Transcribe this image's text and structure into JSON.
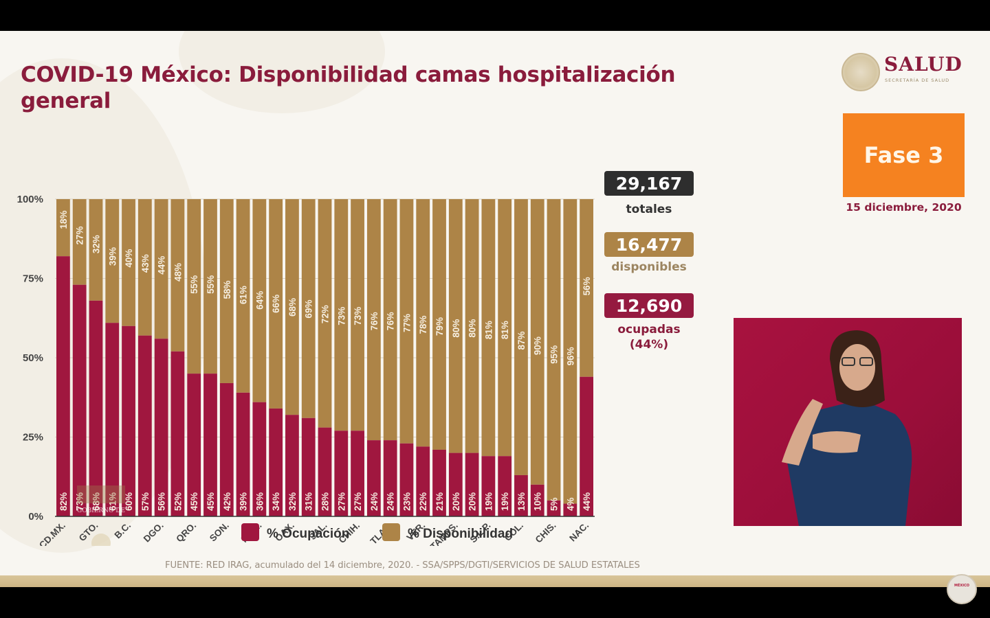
{
  "header": {
    "title": "COVID-19 México: Disponibilidad camas hospitalización general",
    "logo_text": "SALUD",
    "logo_subtext": "SECRETARÍA DE SALUD",
    "phase_label": "Fase 3",
    "date": "15 diciembre, 2020"
  },
  "stats": {
    "total_value": "29,167",
    "total_label": "totales",
    "available_value": "16,477",
    "available_label": "disponibles",
    "occupied_value": "12,690",
    "occupied_label": "ocupadas",
    "occupied_pct": "(44%)"
  },
  "colors": {
    "occupancy": "#a0173f",
    "availability": "#ad8447",
    "title": "#8a1c3c",
    "phase": "#f58220",
    "total_box": "#2e2e2e",
    "available_box": "#ad8447",
    "occupied_box": "#951a40"
  },
  "source": "FUENTE: RED IRAG, acumulado del 14 diciembre, 2020. -  SSA/SPPS/DGTI/SERVICIOS DE SALUD ESTATALES",
  "watermark": {
    "line1": "GOBIERNO DE",
    "line2": "MÉXICO"
  },
  "chart_data": {
    "type": "bar",
    "stacked": true,
    "title": "COVID-19 México: Disponibilidad camas hospitalización general",
    "xlabel": "",
    "ylabel": "",
    "ylim": [
      0,
      100
    ],
    "yticks": [
      "0%",
      "25%",
      "50%",
      "75%",
      "100%"
    ],
    "grid": true,
    "legend_position": "bottom",
    "bar_count": 33,
    "categories": [
      "CD.MX.",
      "",
      "GTO.",
      "",
      "B.C.",
      "",
      "DGO.",
      "",
      "QRO.",
      "",
      "SON.",
      "",
      "MOR.",
      "",
      "OAX.",
      "",
      "JAL.",
      "",
      "CHIH.",
      "",
      "TLAX.",
      "",
      "VER.",
      "",
      "TAMPS.",
      "",
      "S.L.P.",
      "",
      "COL.",
      "",
      "CHIS.",
      "",
      "NAC."
    ],
    "series": [
      {
        "name": "% Ocupación",
        "values": [
          82,
          73,
          68,
          61,
          60,
          57,
          56,
          52,
          45,
          45,
          42,
          39,
          36,
          34,
          32,
          31,
          28,
          27,
          27,
          24,
          24,
          23,
          22,
          21,
          20,
          20,
          19,
          19,
          13,
          10,
          5,
          4,
          44
        ]
      },
      {
        "name": "% Disponibilidad",
        "values": [
          18,
          27,
          32,
          39,
          40,
          43,
          44,
          48,
          55,
          55,
          58,
          61,
          64,
          66,
          68,
          69,
          72,
          73,
          73,
          76,
          76,
          77,
          78,
          79,
          80,
          80,
          81,
          81,
          87,
          90,
          95,
          96,
          56
        ]
      }
    ]
  }
}
